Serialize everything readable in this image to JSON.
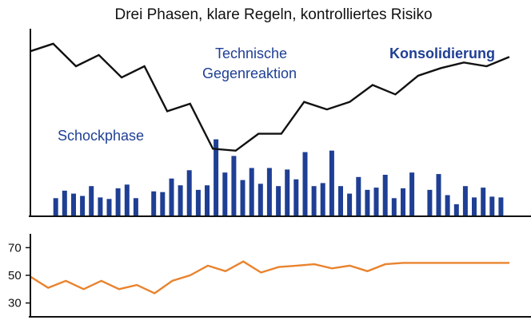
{
  "chart_data": {
    "type": "line",
    "title": "Drei Phasen, klare Regeln, kontrolliertes Risiko",
    "colors": {
      "price": "#111111",
      "volume": "#1f3f94",
      "indicator": "#e9832e",
      "axis": "#111111"
    },
    "annotations": {
      "phase1": "Schockphase",
      "phase2_line1": "Technische",
      "phase2_line2": "Gegenreaktion",
      "phase3": "Konsolidierung"
    },
    "panels": [
      {
        "name": "price",
        "type": "line",
        "x": [
          0,
          1,
          2,
          3,
          4,
          5,
          6,
          7,
          8,
          9,
          10,
          11,
          12,
          13,
          14,
          15,
          16,
          17,
          18,
          19,
          20,
          21
        ],
        "values": [
          88,
          92,
          80,
          86,
          74,
          80,
          56,
          60,
          36,
          35,
          44,
          44,
          61,
          57,
          61,
          70,
          65,
          75,
          79,
          82,
          80,
          85
        ],
        "ylim": [
          0,
          100
        ],
        "grid": false
      },
      {
        "name": "volume",
        "type": "bar",
        "x_min": 0,
        "x_max": 52,
        "bars": [
          [
            1,
            24
          ],
          [
            2,
            34
          ],
          [
            3,
            30
          ],
          [
            4,
            27
          ],
          [
            5,
            40
          ],
          [
            6,
            25
          ],
          [
            7,
            23
          ],
          [
            8,
            37
          ],
          [
            9,
            42
          ],
          [
            10,
            24
          ],
          [
            12,
            33
          ],
          [
            13,
            32
          ],
          [
            14,
            50
          ],
          [
            15,
            41
          ],
          [
            16,
            61
          ],
          [
            17,
            35
          ],
          [
            18,
            41
          ],
          [
            19,
            102
          ],
          [
            20,
            58
          ],
          [
            21,
            80
          ],
          [
            22,
            48
          ],
          [
            23,
            64
          ],
          [
            24,
            43
          ],
          [
            25,
            64
          ],
          [
            26,
            40
          ],
          [
            27,
            62
          ],
          [
            28,
            49
          ],
          [
            29,
            85
          ],
          [
            30,
            40
          ],
          [
            31,
            44
          ],
          [
            32,
            87
          ],
          [
            33,
            40
          ],
          [
            34,
            30
          ],
          [
            35,
            52
          ],
          [
            36,
            35
          ],
          [
            37,
            38
          ],
          [
            38,
            55
          ],
          [
            39,
            24
          ],
          [
            40,
            37
          ],
          [
            41,
            58
          ],
          [
            43,
            35
          ],
          [
            44,
            56
          ],
          [
            45,
            28
          ],
          [
            46,
            16
          ],
          [
            47,
            40
          ],
          [
            48,
            25
          ],
          [
            49,
            38
          ],
          [
            50,
            26
          ],
          [
            51,
            25
          ]
        ],
        "ylim": [
          0,
          110
        ],
        "grid": false
      },
      {
        "name": "indicator",
        "type": "line",
        "x": [
          0,
          1,
          2,
          3,
          4,
          5,
          6,
          7,
          8,
          9,
          10,
          11,
          12,
          13,
          14,
          15,
          16,
          17,
          18,
          19,
          20,
          21,
          22,
          23,
          24,
          25,
          26,
          27
        ],
        "values": [
          49,
          41,
          46,
          40,
          46,
          40,
          43,
          37,
          46,
          50,
          57,
          53,
          60,
          52,
          56,
          57,
          58,
          55,
          57,
          53,
          58,
          59,
          59,
          59,
          59,
          59,
          59,
          59
        ],
        "y_ticks": [
          30,
          50,
          70
        ],
        "ylim": [
          20,
          80
        ],
        "grid": false
      }
    ]
  }
}
